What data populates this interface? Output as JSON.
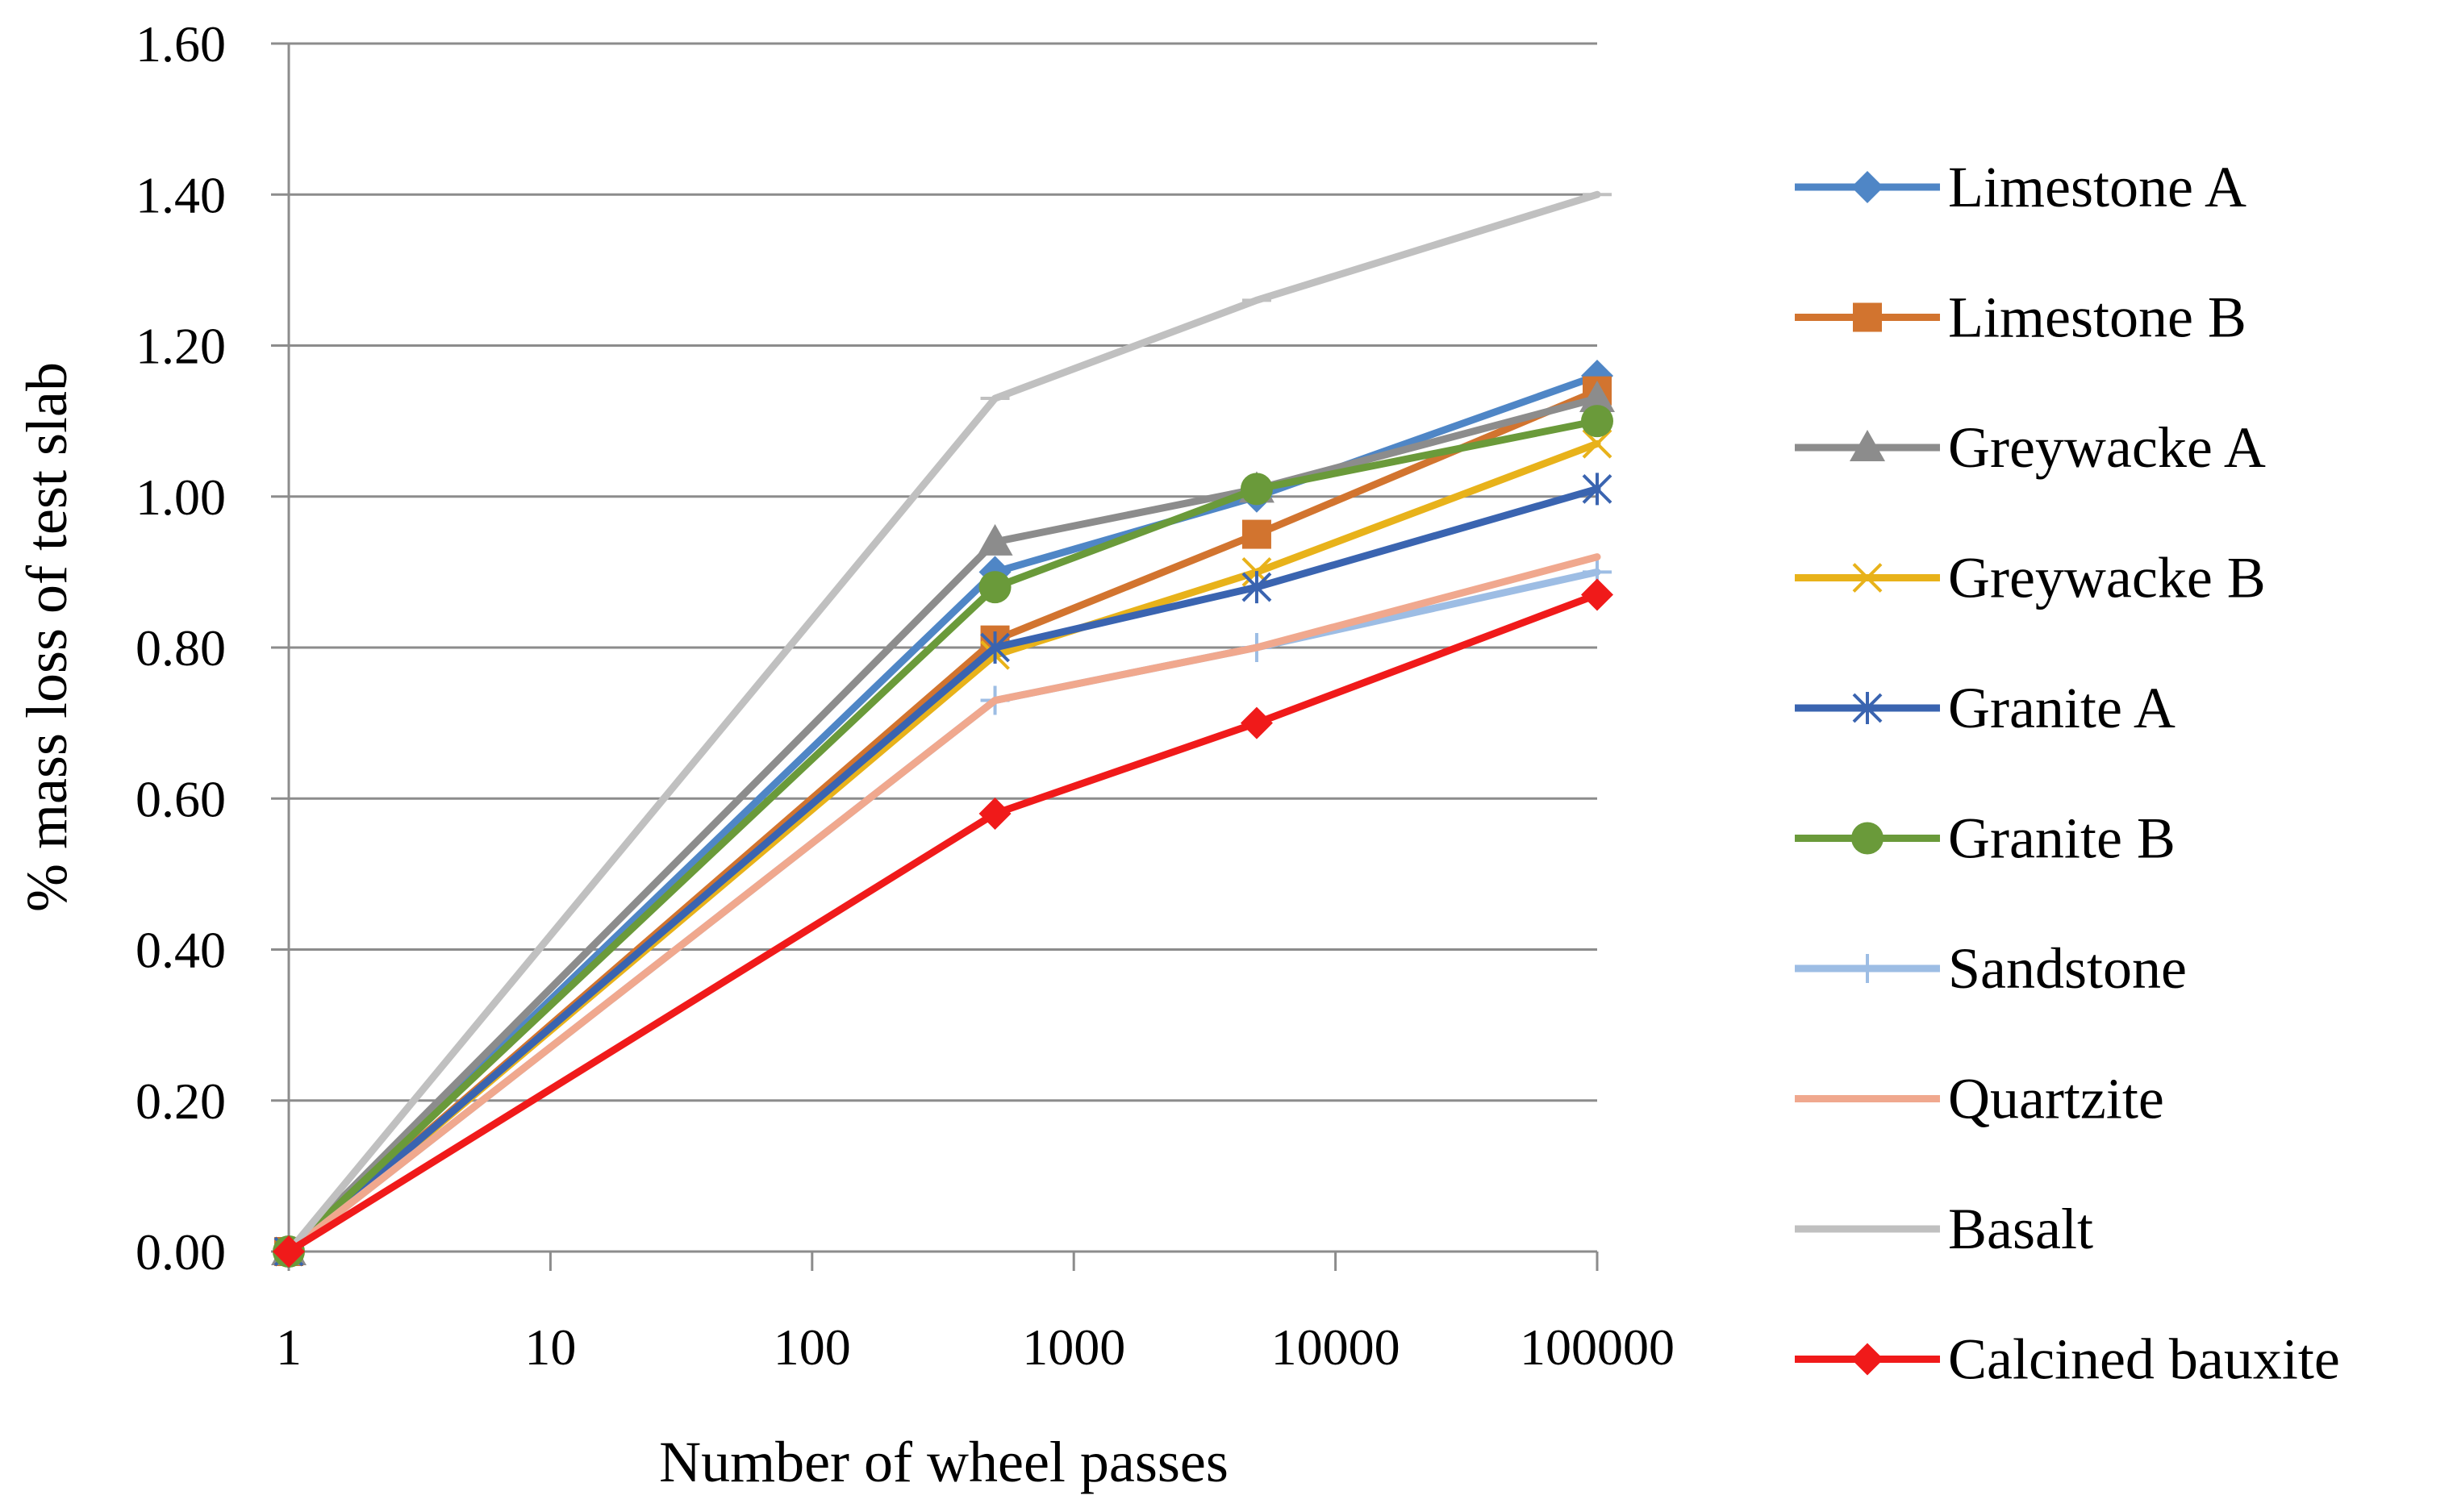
{
  "chart_data": {
    "type": "line",
    "title": "",
    "xlabel": "Number of wheel passes",
    "ylabel": "% mass loss of test slab",
    "x_scale": "log",
    "xlim": [
      1,
      100000
    ],
    "ylim": [
      0,
      1.6
    ],
    "x_tick_labels": [
      "1",
      "10",
      "100",
      "1000",
      "10000",
      "100000"
    ],
    "y_tick_labels": [
      "0.00",
      "0.20",
      "0.40",
      "0.60",
      "0.80",
      "1.00",
      "1.20",
      "1.40",
      "1.60"
    ],
    "x": [
      1,
      500,
      5000,
      100000
    ],
    "grid": "horizontal",
    "legend_position": "right",
    "series": [
      {
        "name": "Limestone A",
        "color": "#4f86c6",
        "marker": "diamond",
        "values": [
          0,
          0.9,
          1.0,
          1.16
        ]
      },
      {
        "name": "Limestone B",
        "color": "#d2742f",
        "marker": "square",
        "values": [
          0,
          0.81,
          0.95,
          1.14
        ]
      },
      {
        "name": "Greywacke A",
        "color": "#8c8c8c",
        "marker": "triangle",
        "values": [
          0,
          0.94,
          1.01,
          1.13
        ]
      },
      {
        "name": "Greywacke B",
        "color": "#e8b21a",
        "marker": "x",
        "values": [
          0,
          0.79,
          0.9,
          1.07
        ]
      },
      {
        "name": "Granite A",
        "color": "#3a64b0",
        "marker": "star",
        "values": [
          0,
          0.8,
          0.88,
          1.01
        ]
      },
      {
        "name": "Granite B",
        "color": "#6a9a3a",
        "marker": "circle",
        "values": [
          0,
          0.88,
          1.01,
          1.1
        ]
      },
      {
        "name": "Sandstone",
        "color": "#9dbde4",
        "marker": "plus",
        "values": [
          0,
          0.73,
          0.8,
          0.9
        ]
      },
      {
        "name": "Quartzite",
        "color": "#f0a88e",
        "marker": "none",
        "values": [
          0,
          0.73,
          0.8,
          0.92
        ]
      },
      {
        "name": "Basalt",
        "color": "#c0c0c0",
        "marker": "dash",
        "values": [
          0,
          1.13,
          1.26,
          1.4
        ]
      },
      {
        "name": "Calcined bauxite",
        "color": "#f01a1a",
        "marker": "diamond",
        "values": [
          0,
          0.58,
          0.7,
          0.87
        ]
      }
    ]
  }
}
